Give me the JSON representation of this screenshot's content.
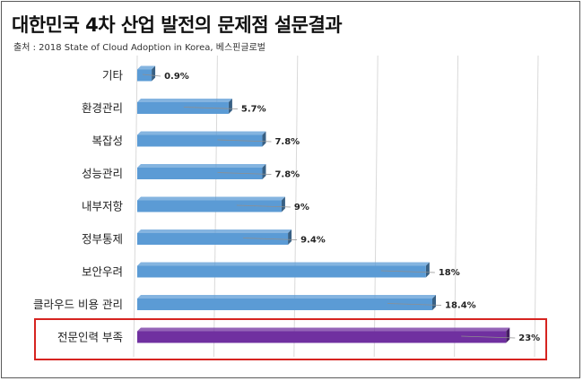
{
  "header": {
    "title": "대한민국 4차 산업 발전의 문제점 설문결과",
    "source": "출처 : 2018 State of Cloud Adoption in Korea, 베스핀글로벌"
  },
  "colors": {
    "bar_default": "#5b9bd5",
    "bar_highlight": "#7030a0",
    "highlight_border": "#d62420"
  },
  "chart_data": {
    "type": "bar",
    "orientation": "horizontal",
    "title": "대한민국 4차 산업 발전의 문제점 설문결과",
    "subtitle": "출처 : 2018 State of Cloud Adoption in Korea, 베스핀글로벌",
    "categories": [
      "기타",
      "환경관리",
      "복잡성",
      "성능관리",
      "내부저항",
      "정부통제",
      "보안우려",
      "클라우드 비용 관리",
      "전문인력 부족"
    ],
    "values": [
      0.9,
      5.7,
      7.8,
      7.8,
      9,
      9.4,
      18,
      18.4,
      23
    ],
    "value_labels": [
      "0.9%",
      "5.7%",
      "7.8%",
      "7.8%",
      "9%",
      "9.4%",
      "18%",
      "18.4%",
      "23%"
    ],
    "highlighted_category": "전문인력 부족",
    "xlim": [
      0,
      25
    ],
    "grid": true,
    "legend": "none"
  }
}
